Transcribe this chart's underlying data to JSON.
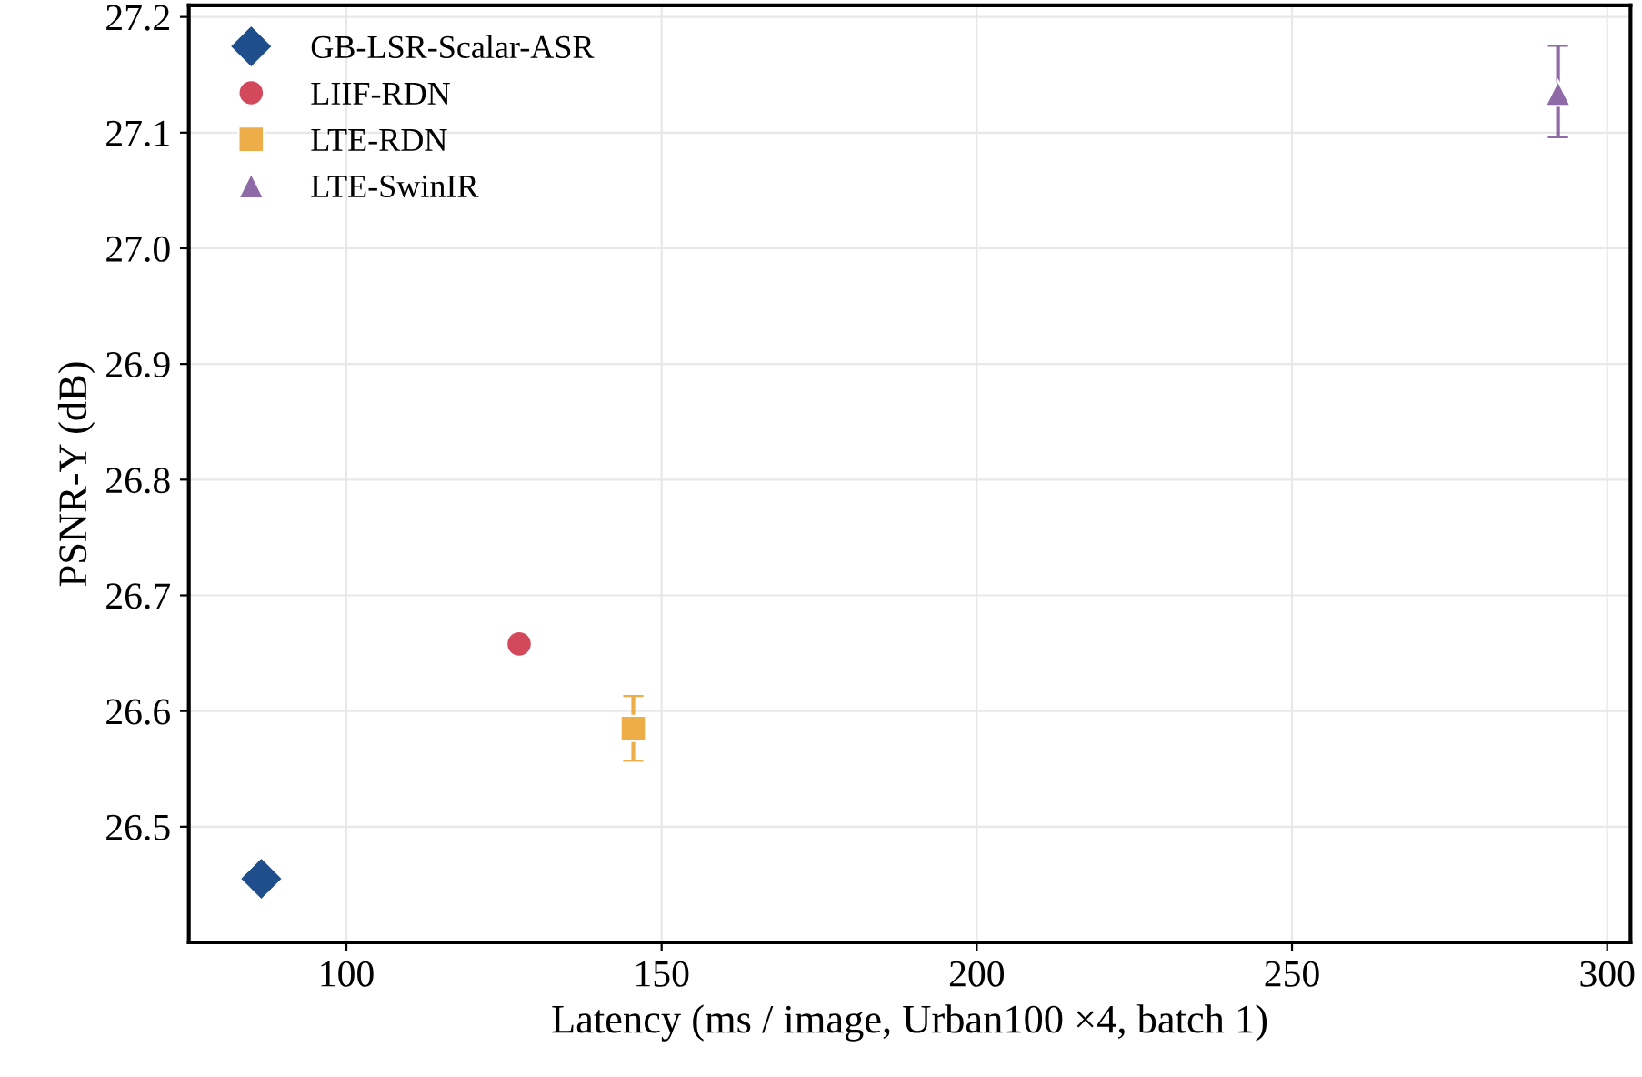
{
  "chart_data": {
    "type": "scatter",
    "xlabel": "Latency (ms / image, Urban100 ×4, batch 1)",
    "ylabel": "PSNR-Y (dB)",
    "xlim": [
      75,
      303.7
    ],
    "xticks": [
      100,
      150,
      200,
      250,
      300
    ],
    "ylim": [
      26.4,
      27.21
    ],
    "yticks": [
      26.5,
      26.6,
      26.7,
      26.8,
      26.9,
      {
        "value": 27,
        "label": "27.0"
      },
      27.1,
      27.2
    ],
    "grid": true,
    "legend": "top left",
    "series": [
      {
        "name": "GB-LSR-Scalar-ASR",
        "color": "#1f4e8c",
        "marker": "diamond",
        "x": [
          86.5
        ],
        "values": [
          26.455
        ]
      },
      {
        "name": "LIIF-RDN",
        "color": "#d1495b",
        "marker": "circle",
        "x": [
          127.4
        ],
        "values": [
          26.658
        ],
        "errors": [
          0.005
        ]
      },
      {
        "name": "LTE-RDN",
        "color": "#edae49",
        "marker": "square",
        "x": [
          145.5
        ],
        "values": [
          26.585
        ],
        "errors": [
          [
            26.557,
            26.613
          ]
        ]
      },
      {
        "name": "LTE-SwinIR",
        "color": "#8e6aa6",
        "marker": "triangle",
        "x": [
          292.2
        ],
        "values": [
          27.134
        ],
        "errors": [
          [
            27.096,
            27.175
          ]
        ]
      }
    ]
  }
}
